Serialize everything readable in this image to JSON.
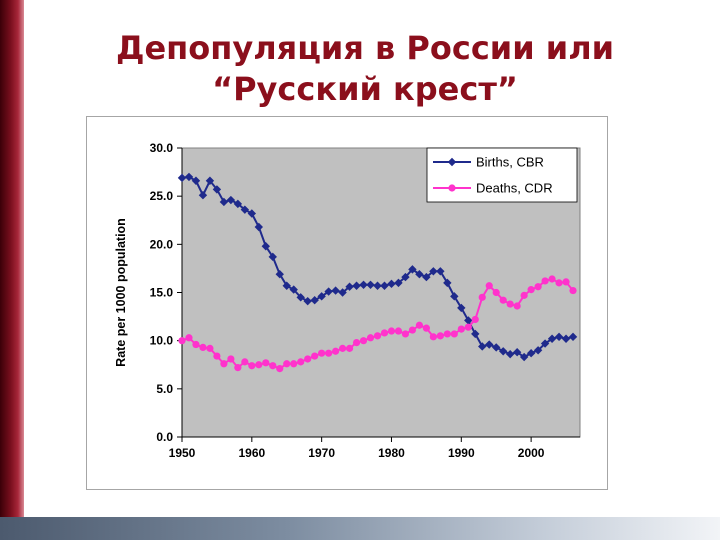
{
  "slide": {
    "title_line1": "Депопуляция в России или",
    "title_line2": "“Русский крест”",
    "accent_color": "#8b0f1c"
  },
  "chart_data": {
    "type": "line",
    "title": "",
    "xlabel": "",
    "ylabel": "Rate per 1000 population",
    "xlim": [
      1950,
      2007
    ],
    "ylim": [
      0,
      30
    ],
    "xticks": [
      1950,
      1960,
      1970,
      1980,
      1990,
      2000
    ],
    "xtick_labels": [
      "1950",
      "1960",
      "1970",
      "1980",
      "1990",
      "2000"
    ],
    "yticks": [
      0,
      5,
      10,
      15,
      20,
      25,
      30
    ],
    "ytick_labels": [
      "0.0",
      "5.0",
      "10.0",
      "15.0",
      "20.0",
      "25.0",
      "30.0"
    ],
    "plot_background": "#c0c0c0",
    "grid": false,
    "legend_position": "top-right",
    "x": [
      1950,
      1951,
      1952,
      1953,
      1954,
      1955,
      1956,
      1957,
      1958,
      1959,
      1960,
      1961,
      1962,
      1963,
      1964,
      1965,
      1966,
      1967,
      1968,
      1969,
      1970,
      1971,
      1972,
      1973,
      1974,
      1975,
      1976,
      1977,
      1978,
      1979,
      1980,
      1981,
      1982,
      1983,
      1984,
      1985,
      1986,
      1987,
      1988,
      1989,
      1990,
      1991,
      1992,
      1993,
      1994,
      1995,
      1996,
      1997,
      1998,
      1999,
      2000,
      2001,
      2002,
      2003,
      2004,
      2005,
      2006
    ],
    "series": [
      {
        "name": "Births, CBR",
        "color": "#1f2a8c",
        "marker": "diamond",
        "values": [
          26.9,
          27.0,
          26.6,
          25.1,
          26.6,
          25.7,
          24.4,
          24.6,
          24.2,
          23.6,
          23.2,
          21.8,
          19.8,
          18.7,
          16.9,
          15.7,
          15.3,
          14.5,
          14.1,
          14.2,
          14.6,
          15.1,
          15.2,
          15.0,
          15.6,
          15.7,
          15.8,
          15.8,
          15.7,
          15.7,
          15.9,
          16.0,
          16.6,
          17.4,
          16.9,
          16.6,
          17.2,
          17.2,
          16.0,
          14.6,
          13.4,
          12.1,
          10.7,
          9.4,
          9.6,
          9.3,
          8.9,
          8.6,
          8.8,
          8.3,
          8.7,
          9.0,
          9.7,
          10.2,
          10.4,
          10.2,
          10.4
        ]
      },
      {
        "name": "Deaths, CDR",
        "color": "#ff33cc",
        "marker": "circle",
        "values": [
          10.0,
          10.3,
          9.6,
          9.3,
          9.2,
          8.4,
          7.6,
          8.1,
          7.2,
          7.8,
          7.4,
          7.5,
          7.7,
          7.4,
          7.1,
          7.6,
          7.6,
          7.8,
          8.1,
          8.4,
          8.7,
          8.7,
          8.9,
          9.2,
          9.2,
          9.8,
          10.0,
          10.3,
          10.5,
          10.8,
          11.0,
          11.0,
          10.7,
          11.1,
          11.6,
          11.3,
          10.4,
          10.5,
          10.7,
          10.7,
          11.2,
          11.4,
          12.2,
          14.5,
          15.7,
          15.0,
          14.2,
          13.8,
          13.6,
          14.7,
          15.3,
          15.6,
          16.2,
          16.4,
          16.0,
          16.1,
          15.2
        ]
      }
    ]
  }
}
